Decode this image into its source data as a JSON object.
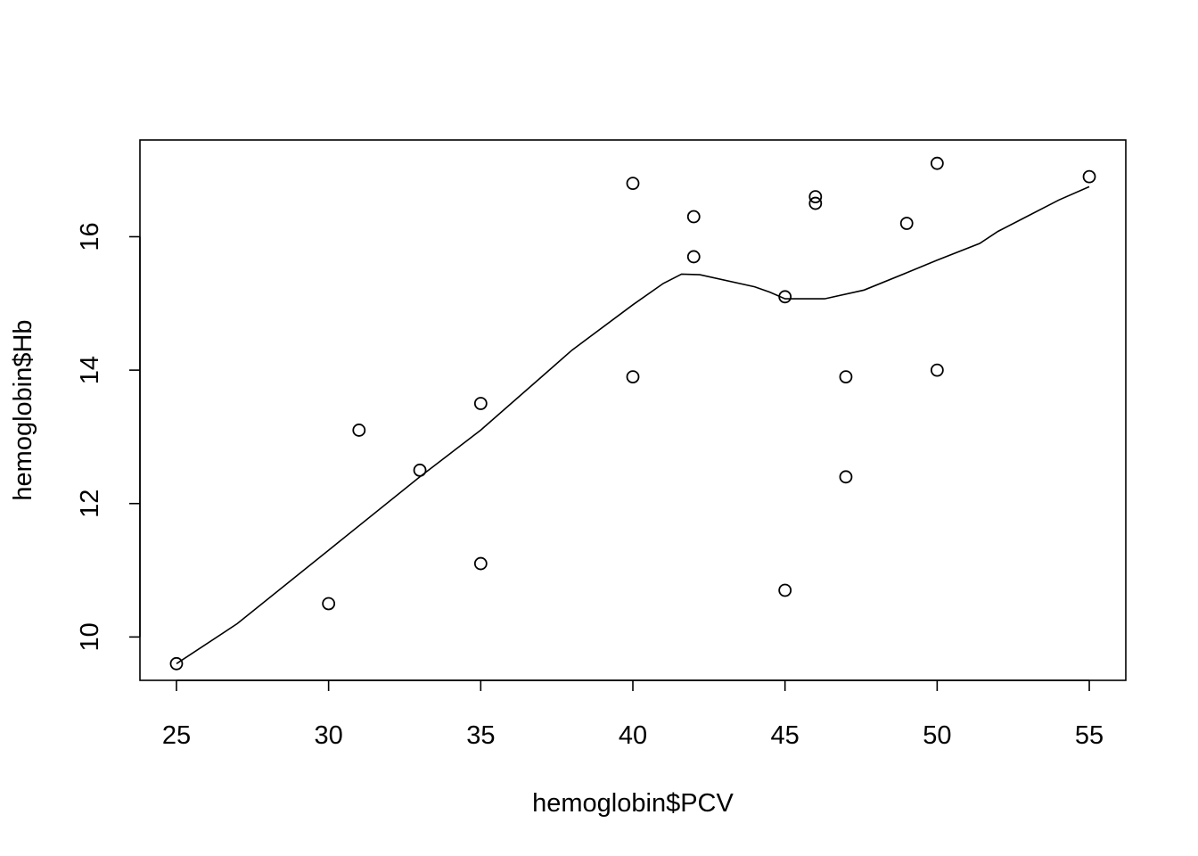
{
  "chart_data": {
    "type": "scatter",
    "title": "",
    "xlabel": "hemoglobin$PCV",
    "ylabel": "hemoglobin$Hb",
    "xlim": [
      23.8,
      56.2
    ],
    "ylim": [
      9.35,
      17.45
    ],
    "x_ticks": [
      25,
      30,
      35,
      40,
      45,
      50,
      55
    ],
    "y_ticks": [
      10,
      12,
      14,
      16
    ],
    "x_tick_labels": [
      "25",
      "30",
      "35",
      "40",
      "45",
      "50",
      "55"
    ],
    "y_tick_labels": [
      "10",
      "12",
      "14",
      "16"
    ],
    "grid": false,
    "legend": "none",
    "marker": "open-circle",
    "series": [
      {
        "x": [
          25,
          30,
          31,
          33,
          35,
          35,
          40,
          40,
          42,
          42,
          45,
          45,
          46,
          46,
          47,
          47,
          49,
          50,
          50,
          55
        ],
        "y": [
          9.6,
          10.5,
          13.1,
          12.5,
          13.5,
          11.1,
          16.8,
          13.9,
          16.3,
          15.7,
          15.1,
          10.7,
          16.6,
          16.5,
          13.9,
          12.4,
          16.2,
          17.1,
          14.0,
          16.9
        ]
      }
    ],
    "smooth_line": {
      "x": [
        25,
        27,
        30,
        33,
        35,
        37,
        38,
        40,
        41,
        41.6,
        42.2,
        44,
        44.5,
        45,
        46.3,
        47.6,
        49,
        50,
        51.4,
        52,
        54,
        55
      ],
      "y": [
        9.6,
        10.2,
        11.3,
        12.4,
        13.1,
        13.9,
        14.3,
        14.98,
        15.3,
        15.44,
        15.43,
        15.25,
        15.17,
        15.07,
        15.07,
        15.2,
        15.46,
        15.65,
        15.9,
        16.08,
        16.55,
        16.75
      ]
    }
  }
}
